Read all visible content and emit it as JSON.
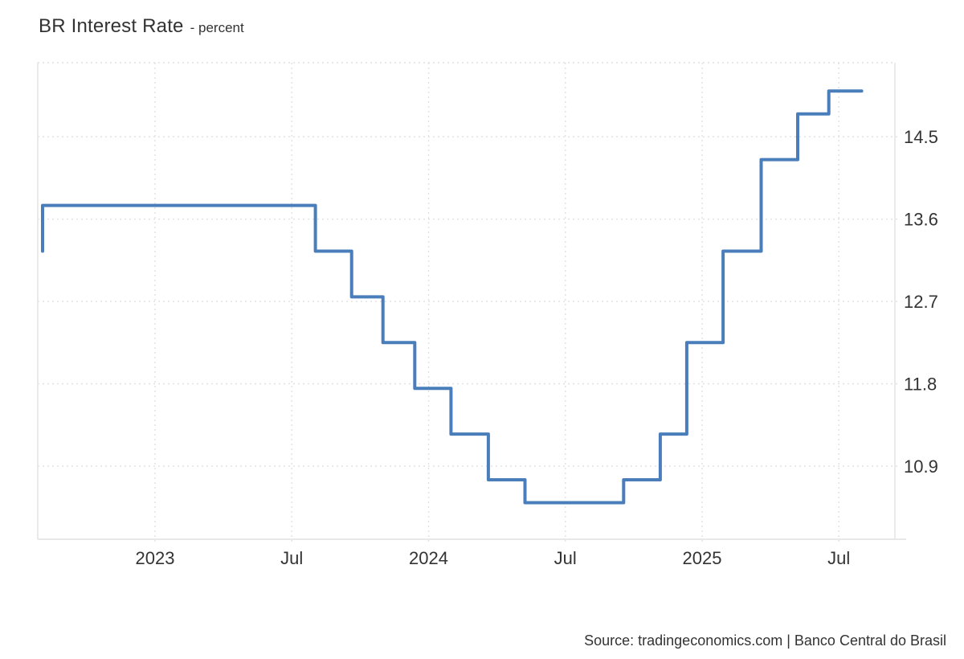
{
  "header": {
    "title": "BR Interest Rate",
    "subtitle": "- percent"
  },
  "footer": {
    "source": "Source: tradingeconomics.com | Banco Central do Brasil"
  },
  "colors": {
    "line": "#4a7ebb",
    "grid": "#e0e0e0",
    "border": "#e4e4e4",
    "text": "#333333",
    "background": "#ffffff"
  },
  "chart_data": {
    "type": "line",
    "step": true,
    "title": "BR Interest Rate",
    "subtitle": "percent",
    "ylabel": "percent",
    "xlabel": "",
    "grid": true,
    "legend": false,
    "y_range": [
      10.1,
      15.31
    ],
    "x_range": [
      "2022-07-27",
      "2025-09-15"
    ],
    "y_ticks": [
      14.5,
      13.6,
      12.7,
      11.8,
      10.9
    ],
    "x_ticks": [
      {
        "date": "2023-01-01",
        "label": "2023"
      },
      {
        "date": "2023-07-01",
        "label": "Jul"
      },
      {
        "date": "2024-01-01",
        "label": "2024"
      },
      {
        "date": "2024-07-01",
        "label": "Jul"
      },
      {
        "date": "2025-01-01",
        "label": "2025"
      },
      {
        "date": "2025-07-01",
        "label": "Jul"
      }
    ],
    "series": [
      {
        "name": "BR Interest Rate",
        "color": "#4a7ebb",
        "line_width": 4,
        "points": [
          [
            "2022-08-03",
            13.25
          ],
          [
            "2022-08-03",
            13.75
          ],
          [
            "2023-08-02",
            13.25
          ],
          [
            "2023-09-20",
            12.75
          ],
          [
            "2023-11-01",
            12.25
          ],
          [
            "2023-12-13",
            11.75
          ],
          [
            "2024-01-31",
            11.25
          ],
          [
            "2024-03-20",
            10.75
          ],
          [
            "2024-05-08",
            10.5
          ],
          [
            "2024-09-18",
            10.75
          ],
          [
            "2024-11-06",
            11.25
          ],
          [
            "2024-12-11",
            12.25
          ],
          [
            "2025-01-29",
            13.25
          ],
          [
            "2025-03-19",
            14.25
          ],
          [
            "2025-05-07",
            14.75
          ],
          [
            "2025-06-18",
            15.0
          ],
          [
            "2025-08-01",
            15.0
          ]
        ]
      }
    ]
  }
}
